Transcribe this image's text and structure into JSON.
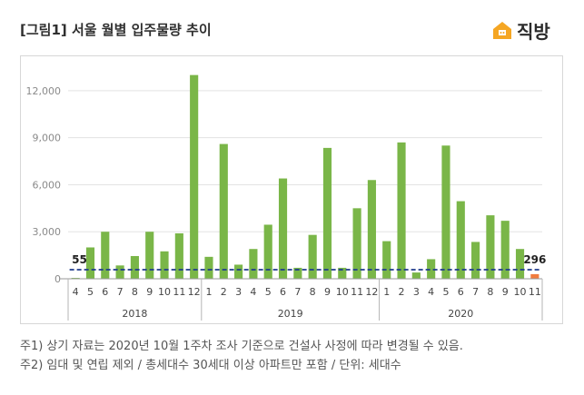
{
  "title": "[그림1] 서울 월별 입주물량 추이",
  "logo": {
    "text": "직방",
    "icon": "house-icon",
    "color": "#f5a623"
  },
  "notes": [
    "주1) 상기 자료는 2020년 10월 1주차 조사 기준으로 건설사 사정에 따라 변경될 수 있음.",
    "주2) 임대 및 연립 제외 / 총세대수 30세대 이상 아파트만 포함 / 단위: 세대수"
  ],
  "chart_data": {
    "type": "bar",
    "title": "",
    "xlabel": "",
    "ylabel": "",
    "ylim": [
      0,
      13500
    ],
    "yticks": [
      0,
      3000,
      6000,
      9000,
      12000
    ],
    "ytick_labels": [
      "0",
      "3,000",
      "6,000",
      "9,000",
      "12,000"
    ],
    "grid": true,
    "categories": [
      "4",
      "5",
      "6",
      "7",
      "8",
      "9",
      "10",
      "11",
      "12",
      "1",
      "2",
      "3",
      "4",
      "5",
      "6",
      "7",
      "8",
      "9",
      "10",
      "11",
      "12",
      "1",
      "2",
      "3",
      "4",
      "5",
      "6",
      "7",
      "8",
      "9",
      "10",
      "11"
    ],
    "years": [
      {
        "label": "2018",
        "count": 9
      },
      {
        "label": "2019",
        "count": 12
      },
      {
        "label": "2020",
        "count": 11
      }
    ],
    "values": [
      55,
      2000,
      3000,
      850,
      1450,
      3000,
      1750,
      2900,
      13000,
      1400,
      8600,
      900,
      1900,
      3450,
      6400,
      700,
      2800,
      8350,
      700,
      4500,
      6300,
      2400,
      8700,
      400,
      1250,
      8500,
      4950,
      2350,
      4050,
      3700,
      1900,
      296
    ],
    "bar_color": "#7ab648",
    "highlight_color": "#f07b3f",
    "highlight_index": 31,
    "reference_line": {
      "value": 580,
      "color": "#1f3b8c",
      "style": "dashed"
    },
    "annotations": [
      {
        "text": "55",
        "index": 0
      },
      {
        "text": "296",
        "index": 31
      }
    ]
  }
}
